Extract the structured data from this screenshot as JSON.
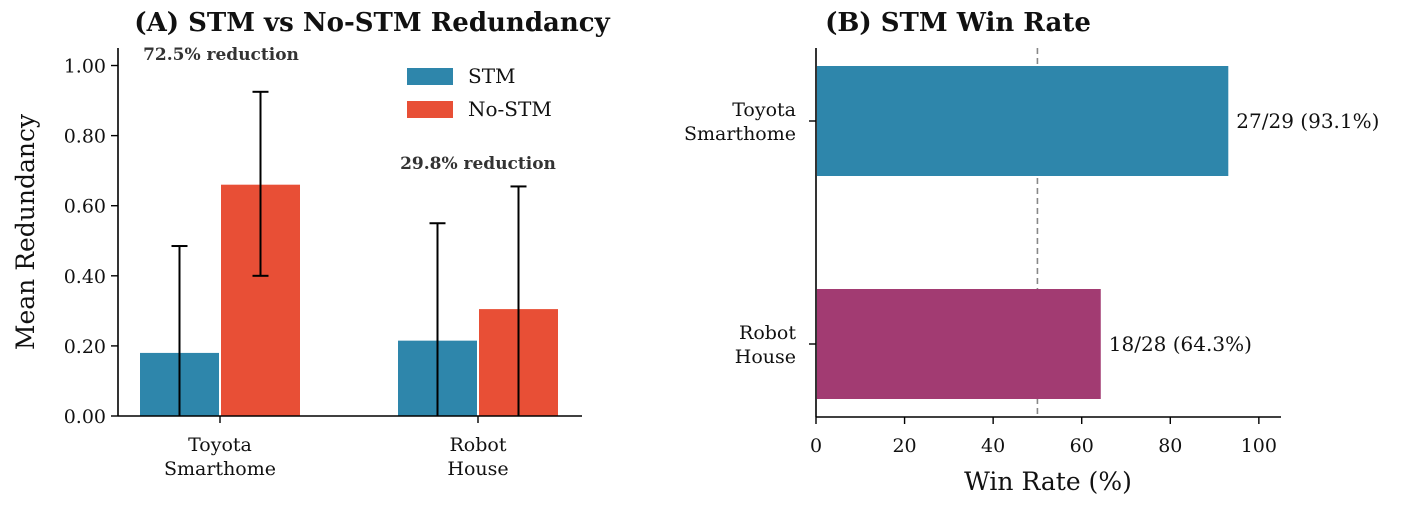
{
  "chart_data": [
    {
      "type": "bar",
      "title": "(A) STM vs No-STM Redundancy",
      "ylabel": "Mean Redundancy",
      "xlabel": "",
      "categories": [
        [
          "Toyota",
          "Smarthome"
        ],
        [
          "Robot",
          "House"
        ]
      ],
      "ylim": [
        0,
        1.05
      ],
      "yticks": [
        "0.00",
        "0.20",
        "0.40",
        "0.60",
        "0.80",
        "1.00"
      ],
      "ytick_values": [
        0,
        0.2,
        0.4,
        0.6,
        0.8,
        1.0
      ],
      "series": [
        {
          "name": "STM",
          "color": "#2e86ab",
          "values": [
            0.18,
            0.215
          ],
          "err_low": [
            0.0,
            0.0
          ],
          "err_high": [
            0.485,
            0.55
          ]
        },
        {
          "name": "No-STM",
          "color": "#e84f36",
          "values": [
            0.66,
            0.305
          ],
          "err_low": [
            0.4,
            0.0
          ],
          "err_high": [
            0.925,
            0.655
          ]
        }
      ],
      "annotations": [
        "72.5% reduction",
        "29.8% reduction"
      ],
      "legend": "top-right",
      "grid": false
    },
    {
      "type": "bar",
      "orientation": "horizontal",
      "title": "(B) STM Win Rate",
      "xlabel": "Win Rate (%)",
      "ylabel": "",
      "categories": [
        [
          "Toyota",
          "Smarthome"
        ],
        [
          "Robot",
          "House"
        ]
      ],
      "values": [
        93.1,
        64.3
      ],
      "colors": [
        "#2e86ab",
        "#a23b72"
      ],
      "labels": [
        "27/29 (93.1%)",
        "18/28 (64.3%)"
      ],
      "xlim": [
        0,
        105
      ],
      "xticks": [
        "0",
        "20",
        "40",
        "60",
        "80",
        "100"
      ],
      "xtick_values": [
        0,
        20,
        40,
        60,
        80,
        100
      ],
      "reference_line": 50,
      "grid": false
    }
  ]
}
